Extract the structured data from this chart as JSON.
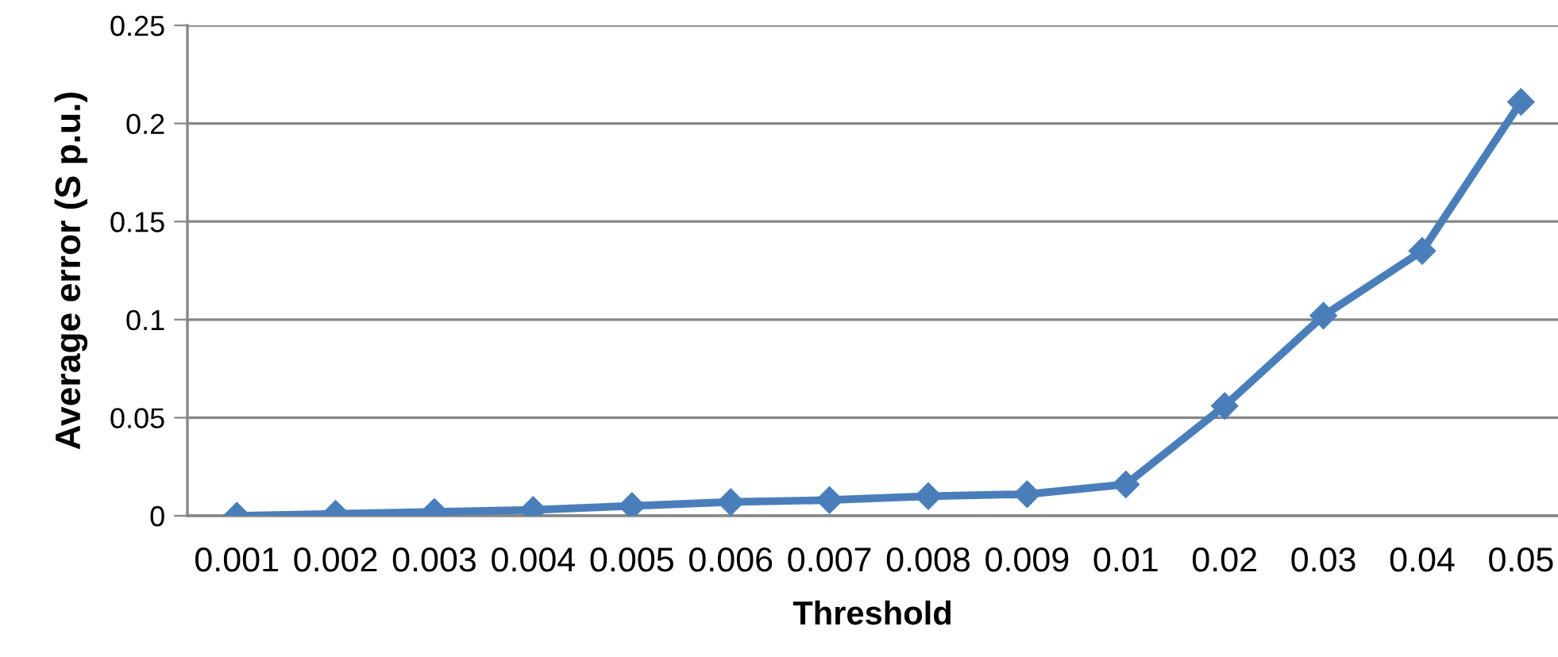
{
  "chart_data": {
    "type": "line",
    "xlabel": "Threshold",
    "ylabel": "Average error (S p.u.)",
    "categories": [
      "0.001",
      "0.002",
      "0.003",
      "0.004",
      "0.005",
      "0.006",
      "0.007",
      "0.008",
      "0.009",
      "0.01",
      "0.02",
      "0.03",
      "0.04",
      "0.05"
    ],
    "series": [
      {
        "color": "#4a7ebb",
        "values": [
          0,
          0.001,
          0.002,
          0.003,
          0.005,
          0.007,
          0.008,
          0.01,
          0.011,
          0.016,
          0.056,
          0.102,
          0.135,
          0.211
        ]
      }
    ],
    "ylim": [
      0,
      0.25
    ],
    "yticks": [
      0,
      0.05,
      0.1,
      0.15,
      0.2,
      0.25
    ],
    "grid": "y",
    "marker": "diamond",
    "line_style": "solid"
  }
}
